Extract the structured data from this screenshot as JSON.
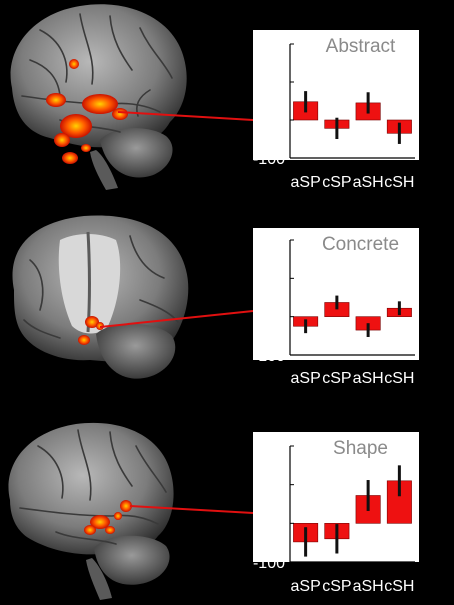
{
  "colors": {
    "background": "#000000",
    "panel": "#ffffff",
    "bar": "#ee1111",
    "error_bar": "#111111",
    "connector": "#e01010",
    "activation": "#ff5a00"
  },
  "brains": [
    {
      "view": "left-lateral"
    },
    {
      "view": "coronal-cutaway"
    },
    {
      "view": "left-lateral"
    }
  ],
  "chart_data": [
    {
      "type": "bar",
      "title": "Abstract",
      "categories": [
        "aSP",
        "cSP",
        "aSH",
        "cSH"
      ],
      "values": [
        48,
        -22,
        45,
        -35
      ],
      "errors": [
        28,
        28,
        28,
        28
      ],
      "ylim": [
        -100,
        200
      ],
      "yticks": [
        -100,
        0,
        100,
        200
      ],
      "grid": false
    },
    {
      "type": "bar",
      "title": "Concrete",
      "categories": [
        "aSP",
        "cSP",
        "aSH",
        "cSH"
      ],
      "values": [
        -25,
        37,
        -35,
        22
      ],
      "errors": [
        18,
        18,
        18,
        18
      ],
      "ylim": [
        -100,
        200
      ],
      "yticks": [
        -100,
        0,
        100,
        200
      ],
      "grid": false
    },
    {
      "type": "bar",
      "title": "Shape",
      "categories": [
        "aSP",
        "cSP",
        "aSH",
        "cSH"
      ],
      "values": [
        -48,
        -40,
        72,
        110
      ],
      "errors": [
        38,
        38,
        40,
        40
      ],
      "ylim": [
        -100,
        200
      ],
      "yticks": [
        -100,
        0,
        100,
        200
      ],
      "grid": false
    }
  ]
}
